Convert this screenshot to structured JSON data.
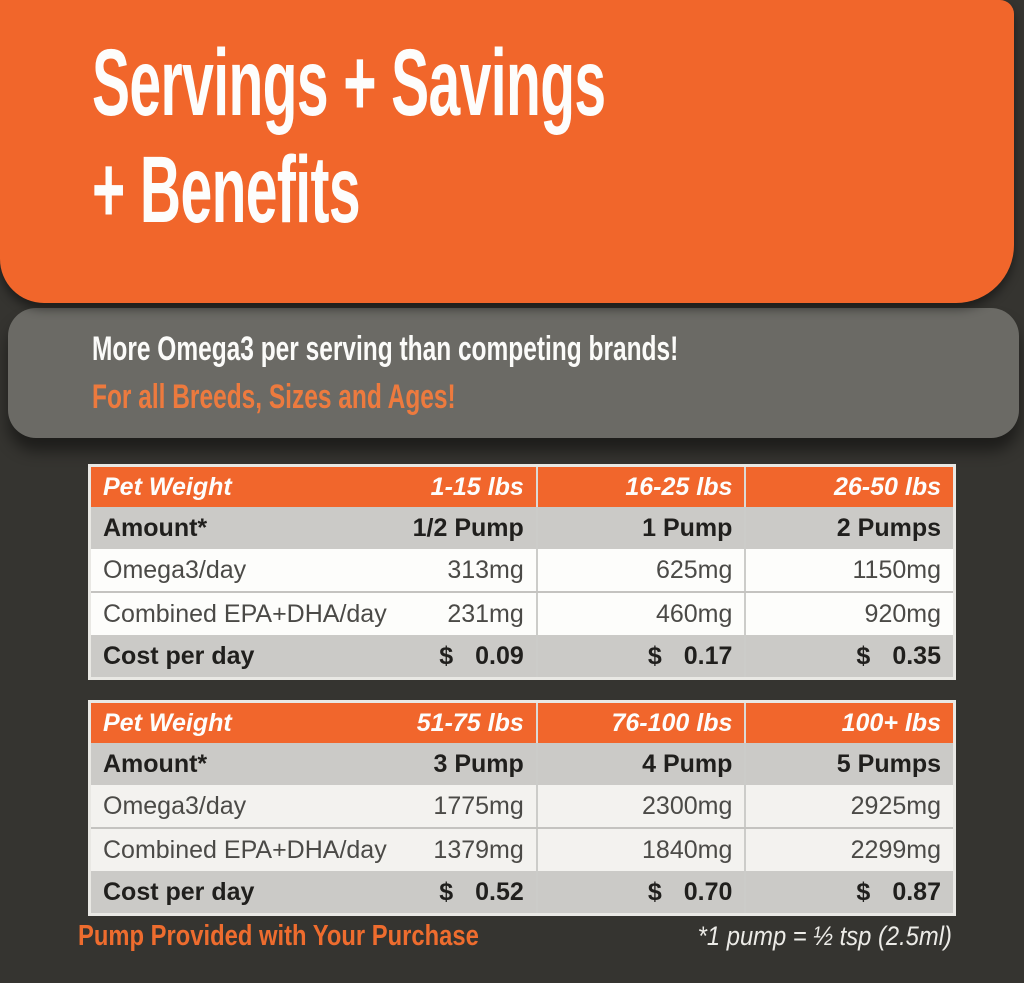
{
  "colors": {
    "background": "#353430",
    "orange": "#f1662b",
    "panel_gray": "#6b6a65",
    "row_gray": "#cbcac7",
    "row_white_table1": "#fdfdfb",
    "row_white_table2": "#f3f2ef",
    "table_border": "#e9e8e4",
    "subtitle_orange": "#ed7a3e",
    "footer_orange": "#ee6c2e",
    "text_dark": "#201f1d",
    "text_white": "#fdfdfc"
  },
  "hero": {
    "title_line1": "Servings + Savings",
    "title_line2": "+ Benefits"
  },
  "banner": {
    "line1": "More Omega3 per serving than competing brands!",
    "line2": "For all Breeds, Sizes and Ages!"
  },
  "tables": [
    {
      "header": {
        "label": "Pet Weight",
        "cols": [
          "1-15 lbs",
          "16-25 lbs",
          "26-50 lbs"
        ]
      },
      "rows": [
        {
          "label": "Amount*",
          "values": [
            "1/2 Pump",
            "1 Pump",
            "2 Pumps"
          ]
        },
        {
          "label": "Omega3/day",
          "values": [
            "313mg",
            "625mg",
            "1150mg"
          ]
        },
        {
          "label": "Combined EPA+DHA/day",
          "values": [
            "231mg",
            "460mg",
            "920mg"
          ]
        },
        {
          "label": "Cost per day",
          "currency": "$",
          "values": [
            "0.09",
            "0.17",
            "0.35"
          ]
        }
      ]
    },
    {
      "header": {
        "label": "Pet Weight",
        "cols": [
          "51-75 lbs",
          "76-100 lbs",
          "100+ lbs"
        ]
      },
      "rows": [
        {
          "label": "Amount*",
          "values": [
            "3 Pump",
            "4 Pump",
            "5 Pumps"
          ]
        },
        {
          "label": "Omega3/day",
          "values": [
            "1775mg",
            "2300mg",
            "2925mg"
          ]
        },
        {
          "label": "Combined EPA+DHA/day",
          "values": [
            "1379mg",
            "1840mg",
            "2299mg"
          ]
        },
        {
          "label": "Cost per day",
          "currency": "$",
          "values": [
            "0.52",
            "0.70",
            "0.87"
          ]
        }
      ]
    }
  ],
  "footer": {
    "left": "Pump Provided with Your Purchase",
    "right": "*1 pump = ½ tsp (2.5ml)"
  }
}
